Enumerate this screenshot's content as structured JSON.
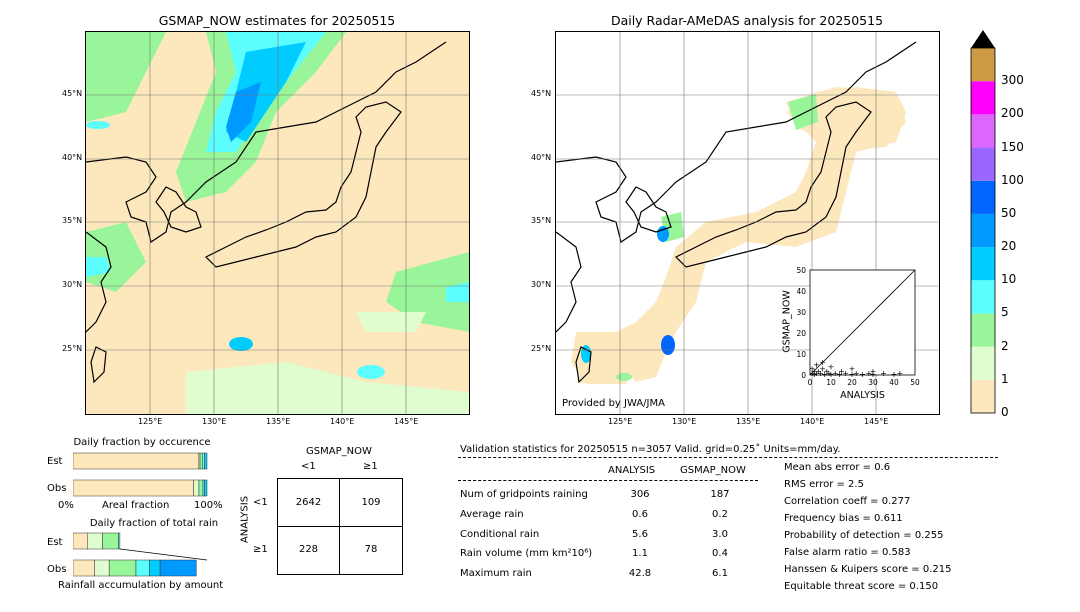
{
  "left_map": {
    "title": "GSMAP_NOW estimates for 20250515",
    "lat_labels": [
      "45°N",
      "40°N",
      "35°N",
      "30°N",
      "25°N"
    ],
    "lon_labels": [
      "125°E",
      "130°E",
      "135°E",
      "140°E",
      "145°E"
    ]
  },
  "right_map": {
    "title": "Daily Radar-AMeDAS analysis for 20250515",
    "lat_labels": [
      "45°N",
      "40°N",
      "35°N",
      "30°N",
      "25°N"
    ],
    "lon_labels": [
      "125°E",
      "130°E",
      "135°E",
      "140°E",
      "145°E"
    ],
    "credit": "Provided by JWA/JMA"
  },
  "inset_scatter": {
    "xlabel": "ANALYSIS",
    "ylabel": "GSMAP_NOW",
    "ticks": [
      "0",
      "10",
      "20",
      "30",
      "40",
      "50"
    ]
  },
  "colorbar": {
    "levels": [
      "0",
      "1",
      "2",
      "5",
      "10",
      "20",
      "50",
      "100",
      "150",
      "200",
      "300"
    ],
    "colors": [
      "#fde8bd",
      "#e0fdd0",
      "#99f599",
      "#5cfdfd",
      "#00ccff",
      "#0099ff",
      "#0066ff",
      "#9966ff",
      "#dd66ff",
      "#ff00ff",
      "#cc9944"
    ],
    "extend_color": "#000000"
  },
  "occurrence": {
    "title": "Daily fraction by occurence",
    "row_labels": [
      "Est",
      "Obs"
    ],
    "xlabel_left": "0%",
    "xlabel_mid": "Areal fraction",
    "xlabel_right": "100%",
    "est_fractions": [
      0.939,
      0.009,
      0.02,
      0.014,
      0.018
    ],
    "obs_fractions": [
      0.9,
      0.04,
      0.03,
      0.012,
      0.018
    ]
  },
  "total_rain": {
    "title": "Daily fraction of total rain",
    "row_labels": [
      "Est",
      "Obs"
    ],
    "footer": "Rainfall accumulation by amount",
    "est_fractions": [
      0.11,
      0.11,
      0.12,
      0.01
    ],
    "obs_fractions": [
      0.16,
      0.11,
      0.2,
      0.1,
      0.08,
      0.27
    ]
  },
  "contingency": {
    "col_header": "GSMAP_NOW",
    "col_labels": [
      "<1",
      "≥1"
    ],
    "row_header": "ANALYSIS",
    "row_labels": [
      "<1",
      "≥1"
    ],
    "cells": [
      [
        "2642",
        "109"
      ],
      [
        "228",
        "78"
      ]
    ]
  },
  "validation": {
    "header": "Validation statistics for 20250515  n=3057 Valid. grid=0.25˚ Units=mm/day.",
    "col_analysis": "ANALYSIS",
    "col_gsmap": "GSMAP_NOW",
    "rows": [
      {
        "label": "Num of gridpoints raining",
        "analysis": "306",
        "gsmap": "187"
      },
      {
        "label": "Average rain",
        "analysis": "0.6",
        "gsmap": "0.2"
      },
      {
        "label": "Conditional rain",
        "analysis": "5.6",
        "gsmap": "3.0"
      },
      {
        "label": "Rain volume (mm km²10⁶)",
        "analysis": "1.1",
        "gsmap": "0.4"
      },
      {
        "label": "Maximum rain",
        "analysis": "42.8",
        "gsmap": "6.1"
      }
    ],
    "scores": [
      "Mean abs error =    0.6",
      "RMS error =    2.5",
      "Correlation coeff =  0.277",
      "Frequency bias =  0.611",
      "Probability of detection =  0.255",
      "False alarm ratio =  0.583",
      "Hanssen & Kuipers score =  0.215",
      "Equitable threat score =  0.150"
    ]
  },
  "chart_data": {
    "type": "scatter",
    "xlabel": "ANALYSIS",
    "ylabel": "GSMAP_NOW",
    "xlim": [
      0,
      50
    ],
    "ylim": [
      0,
      50
    ],
    "points": [
      [
        1,
        1
      ],
      [
        2,
        2
      ],
      [
        1,
        3
      ],
      [
        3,
        1
      ],
      [
        2,
        0.5
      ],
      [
        4,
        2
      ],
      [
        5,
        1
      ],
      [
        6,
        3
      ],
      [
        7,
        0.5
      ],
      [
        8,
        2
      ],
      [
        9,
        1
      ],
      [
        10,
        0.5
      ],
      [
        12,
        1
      ],
      [
        14,
        0.5
      ],
      [
        15,
        2
      ],
      [
        17,
        1
      ],
      [
        20,
        0.5
      ],
      [
        22,
        1
      ],
      [
        25,
        0.5
      ],
      [
        28,
        1
      ],
      [
        30,
        0.5
      ],
      [
        35,
        1
      ],
      [
        40,
        0.5
      ],
      [
        42.8,
        1
      ],
      [
        3,
        5
      ],
      [
        6,
        6.1
      ],
      [
        10,
        4
      ],
      [
        20,
        3
      ],
      [
        30,
        2
      ]
    ]
  }
}
